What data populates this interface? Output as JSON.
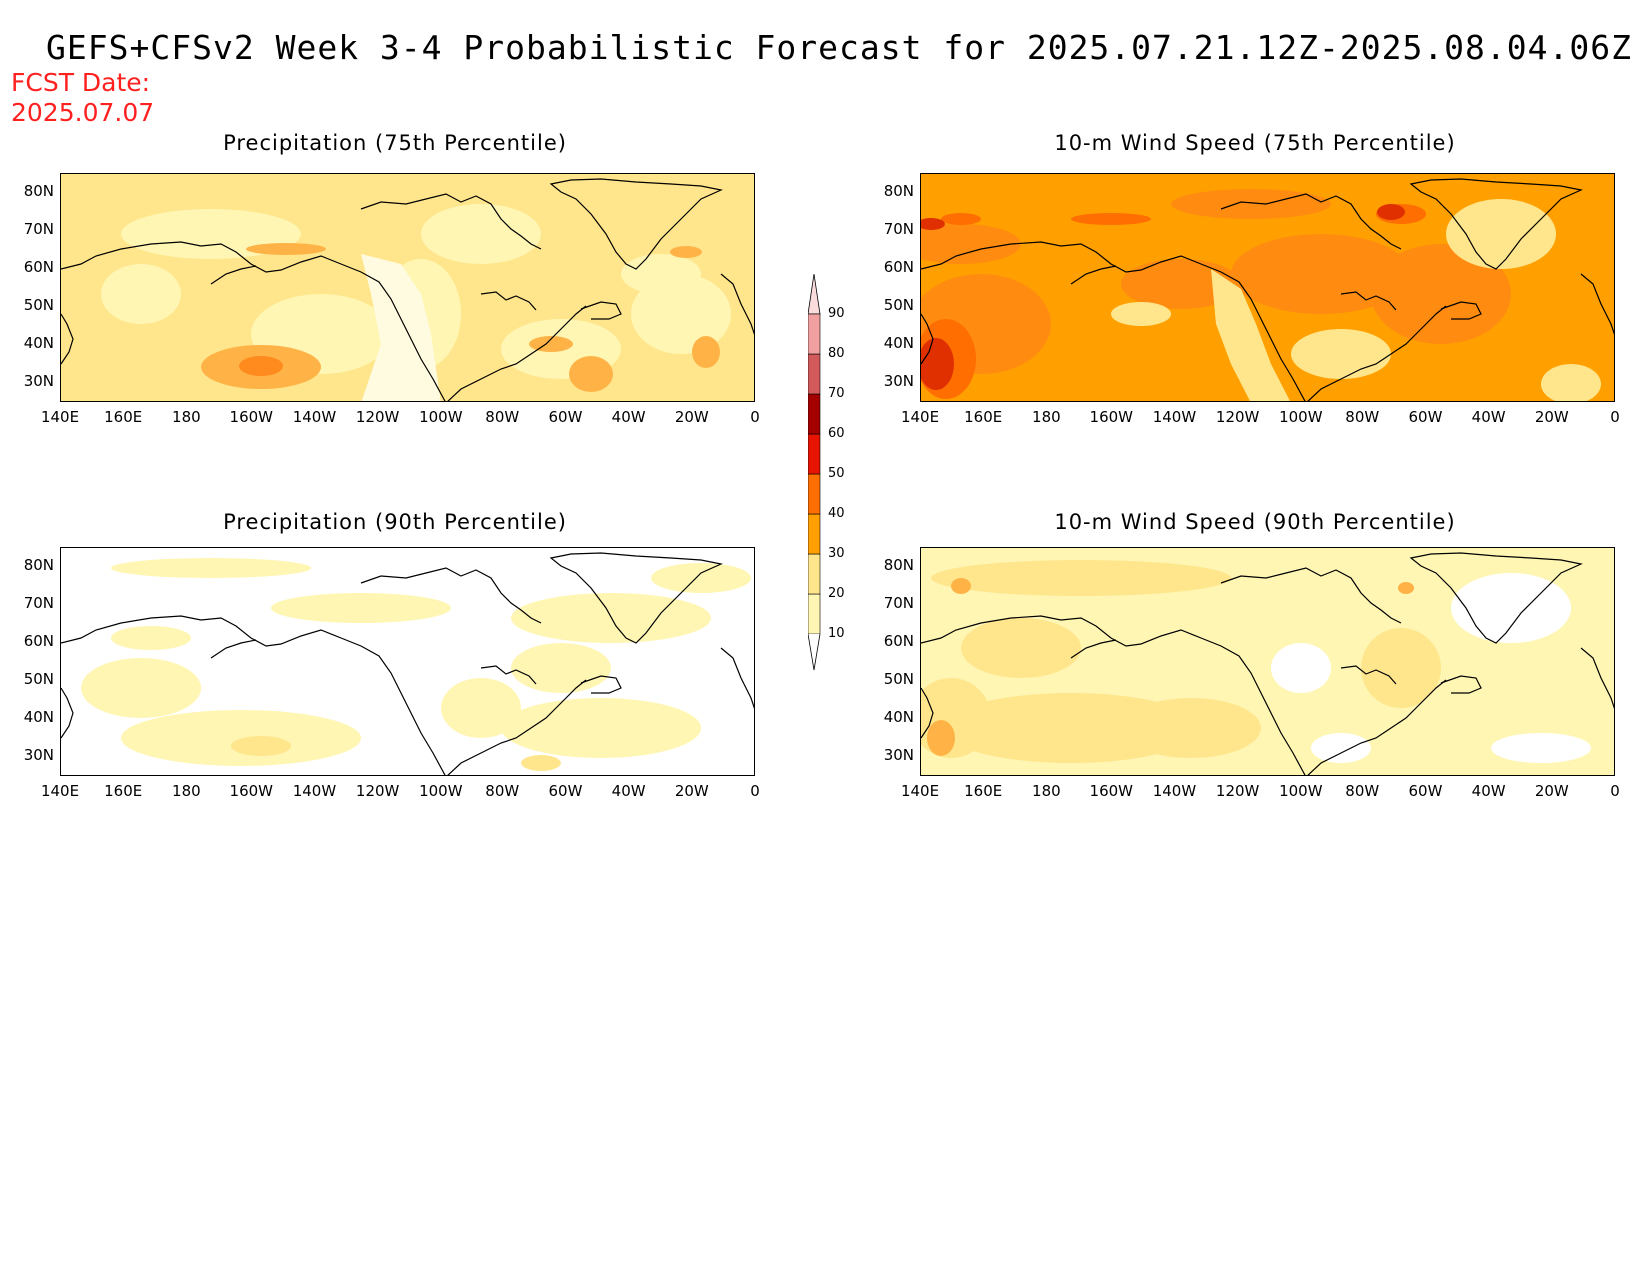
{
  "title": "GEFS+CFSv2 Week 3-4 Probabilistic Forecast for 2025.07.21.12Z-2025.08.04.06Z",
  "fcst_date_label": "FCST Date:",
  "fcst_date": "2025.07.07",
  "panels": [
    {
      "title": "Precipitation (75th Percentile)",
      "shade": "precip75"
    },
    {
      "title": "10-m Wind Speed (75th Percentile)",
      "shade": "wind75"
    },
    {
      "title": "Precipitation (90th Percentile)",
      "shade": "precip90"
    },
    {
      "title": "10-m Wind Speed (90th Percentile)",
      "shade": "wind90"
    }
  ],
  "lon_ticks": [
    "140E",
    "160E",
    "180",
    "160W",
    "140W",
    "120W",
    "100W",
    "80W",
    "60W",
    "40W",
    "20W",
    "0"
  ],
  "lat_ticks": [
    "80N",
    "70N",
    "60N",
    "50N",
    "40N",
    "30N"
  ],
  "colorbar": {
    "levels": [
      "10",
      "20",
      "30",
      "40",
      "50",
      "60",
      "70",
      "80",
      "90"
    ],
    "colors": [
      "#fff6b4",
      "#ffe68c",
      "#ffa000",
      "#ff6e00",
      "#e61400",
      "#a50000",
      "#d25a5a",
      "#f0a0a0",
      "#fadcdc"
    ]
  }
}
